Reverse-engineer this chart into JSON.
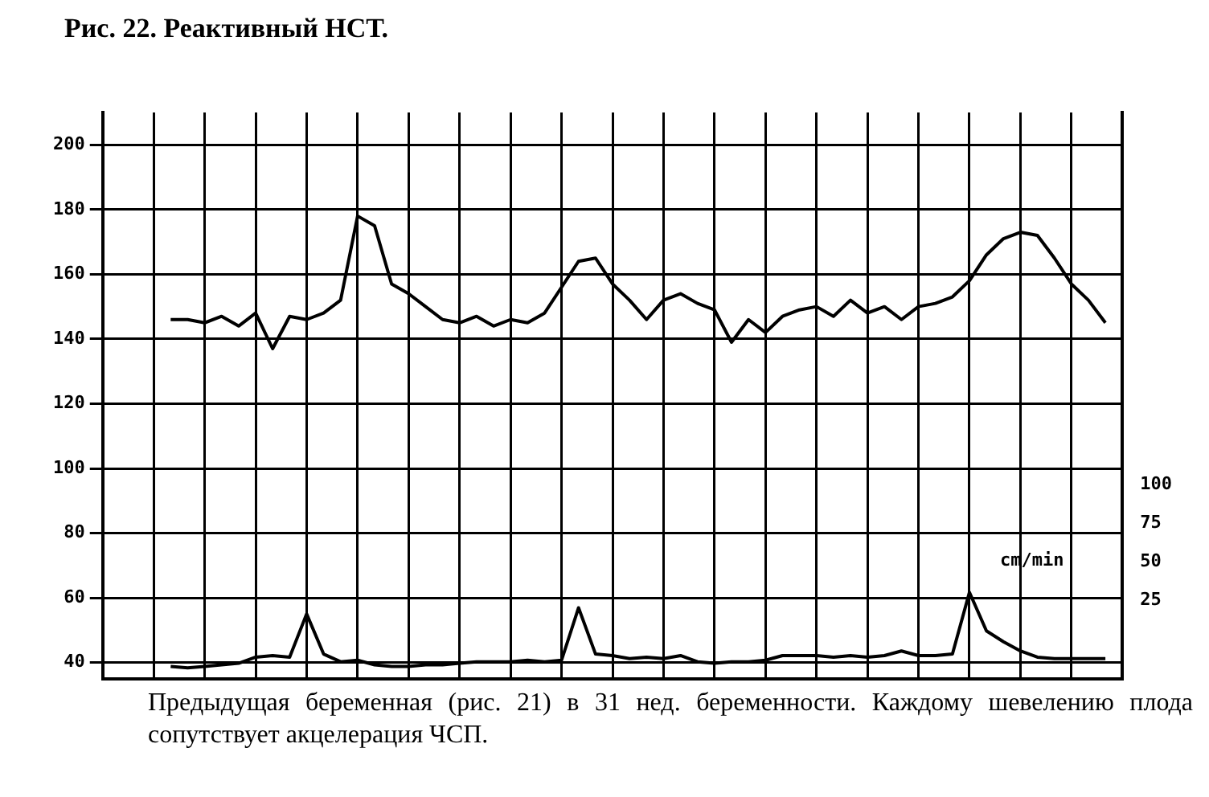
{
  "chart_data": {
    "type": "line",
    "title": "Рис. 22. Реактивный НСТ.",
    "categories": [
      null,
      null,
      null,
      null,
      null,
      null,
      null,
      null,
      null,
      null,
      null,
      null,
      null,
      null,
      null,
      null,
      null,
      null,
      null,
      null,
      null,
      null,
      null,
      null,
      null,
      null,
      null,
      null,
      null,
      null,
      null,
      null,
      null,
      null,
      null,
      null,
      null,
      null,
      null,
      null,
      null,
      null,
      null,
      null,
      null,
      null,
      null,
      null,
      null,
      null,
      null,
      null,
      null,
      null,
      null,
      null,
      null,
      null,
      null,
      null,
      null
    ],
    "series": [
      {
        "color": "#000000",
        "values": [
          null,
          null,
          null,
          null,
          146,
          146,
          145,
          147,
          144,
          148,
          137,
          147,
          146,
          148,
          152,
          178,
          175,
          157,
          154,
          150,
          146,
          145,
          147,
          144,
          146,
          145,
          148,
          156,
          164,
          165,
          157,
          152,
          146,
          152,
          154,
          151,
          149,
          139,
          146,
          142,
          147,
          149,
          150,
          147,
          152,
          148,
          150,
          146,
          150,
          151,
          153,
          158,
          166,
          171,
          173,
          172,
          165,
          157,
          152,
          145,
          null
        ]
      },
      {
        "color": "#000000",
        "axis": "y2",
        "values": [
          null,
          null,
          null,
          null,
          -18,
          -19,
          -18,
          -17,
          -16,
          -12,
          -11,
          -12,
          16,
          -10,
          -15,
          -14,
          -17,
          -18,
          -18,
          -17,
          -17,
          -16,
          -15,
          -15,
          -15,
          -14,
          -15,
          -14,
          20,
          -10,
          -11,
          -13,
          -12,
          -13,
          -11,
          -15,
          -16,
          -15,
          -15,
          -14,
          -11,
          -11,
          -11,
          -12,
          -11,
          -12,
          -11,
          -8,
          -11,
          -11,
          -10,
          30,
          5,
          -2,
          -8,
          -12,
          -13,
          -13,
          -13,
          -13,
          null
        ]
      }
    ],
    "ylim": [
      35,
      210
    ],
    "yticks": [
      40,
      60,
      80,
      100,
      120,
      140,
      160,
      180,
      200
    ],
    "y2lim": [
      -26,
      341
    ],
    "y2ticks": [
      25,
      50,
      75,
      100
    ],
    "grid": true,
    "legend": false,
    "marker": "none",
    "line_style": "solid",
    "annotations": [
      "cm/min",
      "Предыдущая беременная (рис. 21) в 31 нед. беременности. Каждому шевелению плода сопутствует акцелерация ЧСП."
    ]
  }
}
